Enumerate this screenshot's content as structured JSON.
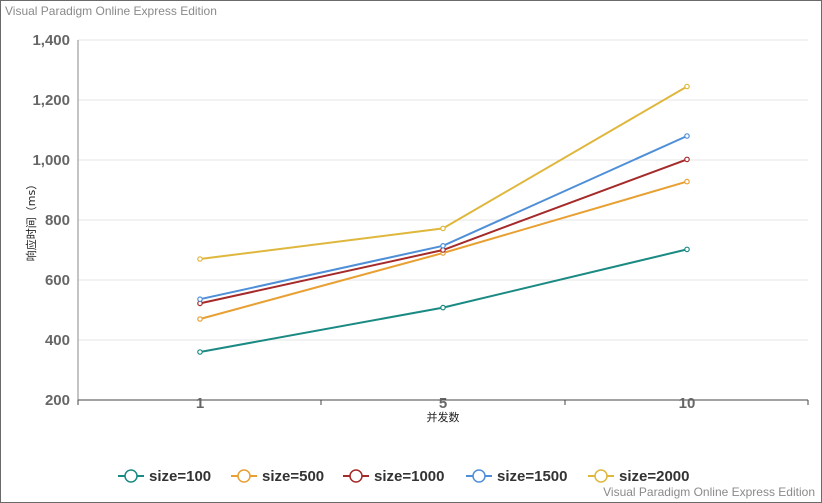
{
  "watermark_top": "Visual Paradigm Online Express Edition",
  "watermark_bottom": "Visual Paradigm Online Express Edition",
  "chart_data": {
    "type": "line",
    "title": "",
    "xlabel": "并发数",
    "ylabel": "响应时间（ms）",
    "categories": [
      "1",
      "5",
      "10"
    ],
    "ylim": [
      200,
      1400
    ],
    "yticks": [
      "200",
      "400",
      "600",
      "800",
      "1,000",
      "1,200",
      "1,400"
    ],
    "grid": true,
    "legend_position": "bottom",
    "series": [
      {
        "name": "size=100",
        "color": "#1a8a83",
        "values": [
          360,
          508,
          702
        ]
      },
      {
        "name": "size=500",
        "color": "#e8a033",
        "values": [
          470,
          690,
          928
        ]
      },
      {
        "name": "size=1000",
        "color": "#a52a2a",
        "values": [
          522,
          700,
          1002
        ]
      },
      {
        "name": "size=1500",
        "color": "#4f8fd8",
        "values": [
          536,
          714,
          1080
        ]
      },
      {
        "name": "size=2000",
        "color": "#dfb73c",
        "values": [
          670,
          772,
          1245
        ]
      }
    ]
  }
}
